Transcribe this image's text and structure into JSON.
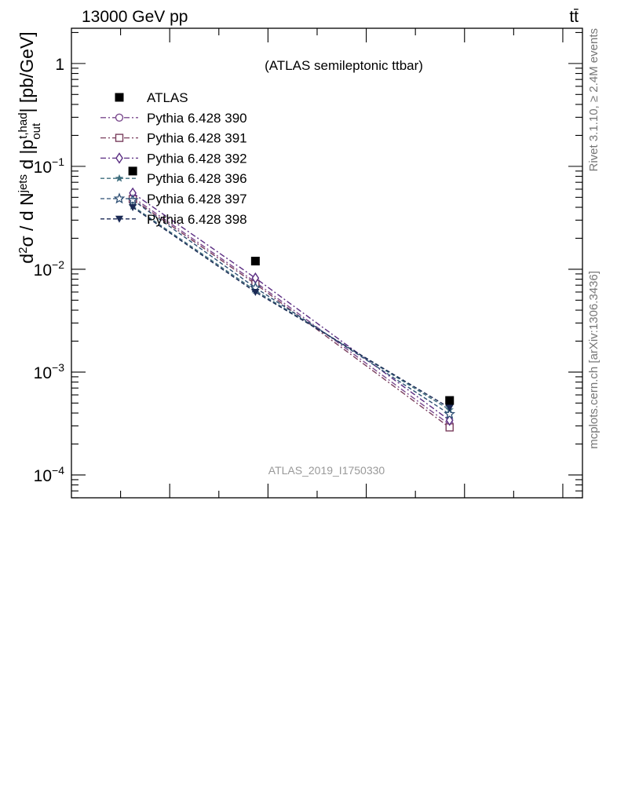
{
  "header": {
    "energy_label": "13000 GeV pp",
    "process_label": "tt̄"
  },
  "side_labels": {
    "rivet": "Rivet 3.1.10, ≥ 2.4M events",
    "mcplots": "mcplots.cern.ch [arXiv:1306.3436]"
  },
  "chart_data": {
    "type": "scatter",
    "title": "(ATLAS semileptonic ttbar)",
    "watermark": "ATLAS_2019_I1750330",
    "ylabel": "d²σ / d N^jets d |p_out^t,had| [pb/GeV]",
    "yscale": "log",
    "ylim": [
      6e-05,
      2.2
    ],
    "y_ticks": [
      {
        "value": 1,
        "label": "1"
      },
      {
        "value": 0.1,
        "label": "10^-1"
      },
      {
        "value": 0.01,
        "label": "10^-2"
      },
      {
        "value": 0.001,
        "label": "10^-3"
      },
      {
        "value": 0.0001,
        "label": "10^-4"
      }
    ],
    "xlim": [
      0,
      1
    ],
    "x": [
      0.12,
      0.36,
      0.74
    ],
    "legend_position": "top-left",
    "series": [
      {
        "name": "ATLAS",
        "values": [
          0.09,
          0.012,
          0.00053
        ],
        "color": "#000000",
        "marker": "filled-square",
        "line": "none"
      },
      {
        "name": "Pythia 6.428 390",
        "values": [
          0.05,
          0.0075,
          0.00031
        ],
        "color": "#7b4a8e",
        "marker": "open-circle",
        "line": "dashdot"
      },
      {
        "name": "Pythia 6.428 391",
        "values": [
          0.048,
          0.0072,
          0.00029
        ],
        "color": "#7a3f5e",
        "marker": "open-square",
        "line": "dashdot"
      },
      {
        "name": "Pythia 6.428 392",
        "values": [
          0.055,
          0.0082,
          0.00034
        ],
        "color": "#5a2d82",
        "marker": "open-diamond",
        "line": "dashdot"
      },
      {
        "name": "Pythia 6.428 396",
        "values": [
          0.041,
          0.0062,
          0.00043
        ],
        "color": "#3f6e7e",
        "marker": "filled-star",
        "line": "dashed"
      },
      {
        "name": "Pythia 6.428 397",
        "values": [
          0.047,
          0.0066,
          0.00039
        ],
        "color": "#2e4f74",
        "marker": "open-star",
        "line": "dashed"
      },
      {
        "name": "Pythia 6.428 398",
        "values": [
          0.04,
          0.006,
          0.00045
        ],
        "color": "#1b2a55",
        "marker": "filled-triangle-down",
        "line": "dashed"
      }
    ]
  }
}
